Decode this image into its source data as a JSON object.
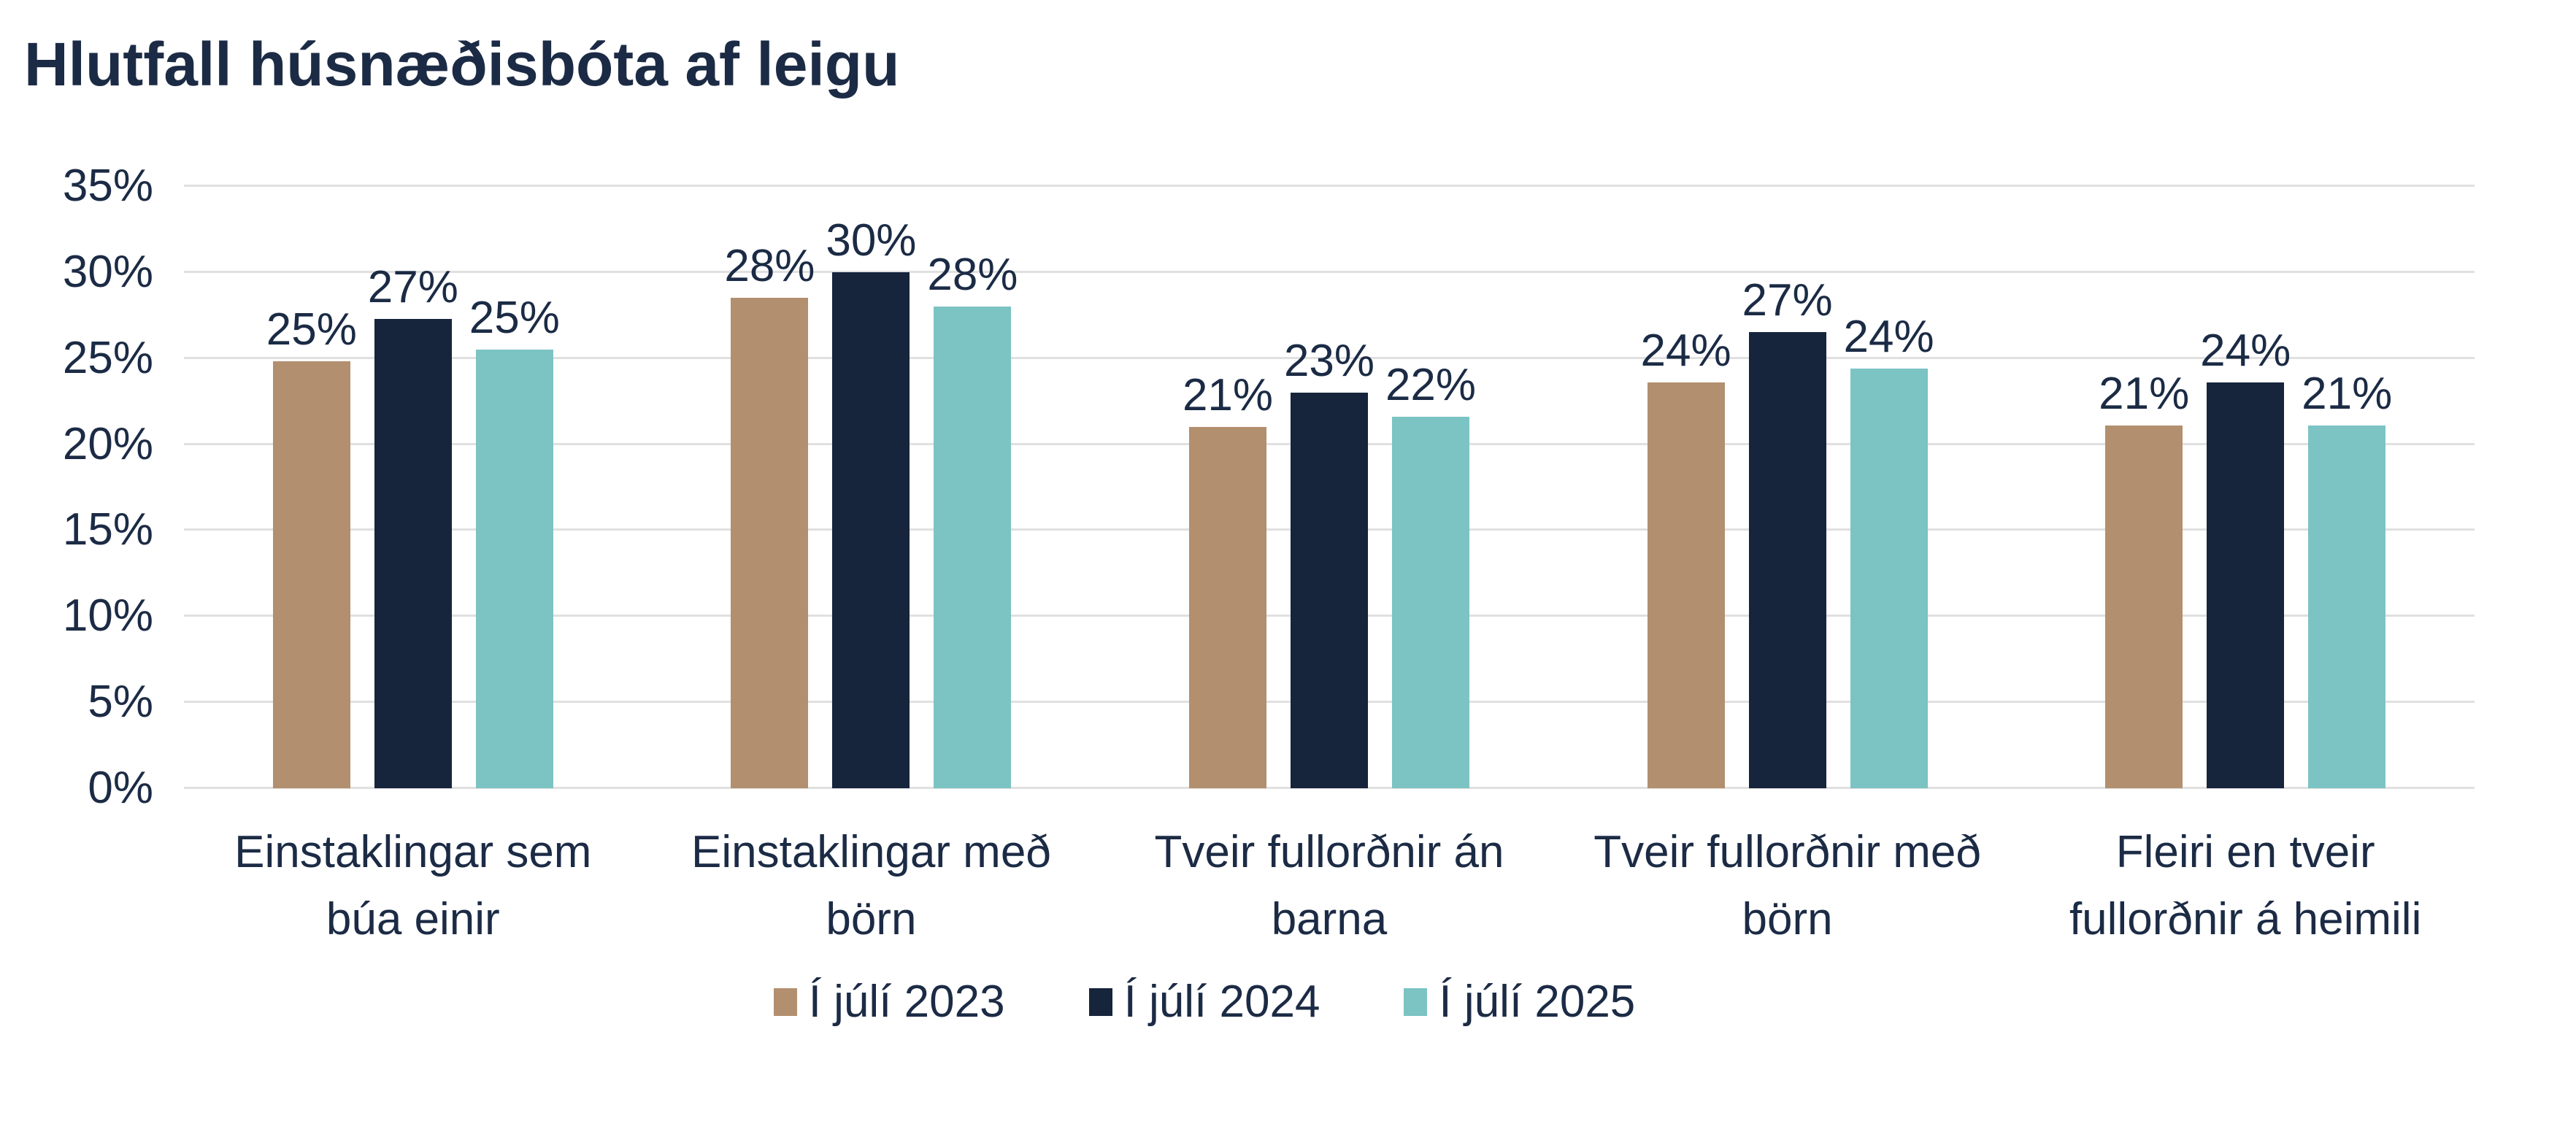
{
  "title": "Hlutfall húsnæðisbóta af leigu",
  "colors": {
    "text": "#1c2b45",
    "gridline": "#e0e0e0",
    "series_2023": "#b28f6e",
    "series_2024": "#16243c",
    "series_2025": "#7cc3c3"
  },
  "chart_data": {
    "type": "bar",
    "title": "Hlutfall húsnæðisbóta af leigu",
    "categories": [
      "Einstaklingar sem búa einir",
      "Einstaklingar með börn",
      "Tveir fullorðnir án barna",
      "Tveir fullorðnir með börn",
      "Fleiri en tveir fullorðnir á heimili"
    ],
    "categories_wrapped": [
      [
        "Einstaklingar sem",
        "búa einir"
      ],
      [
        "Einstaklingar með",
        "börn"
      ],
      [
        "Tveir fullorðnir án",
        "barna"
      ],
      [
        "Tveir fullorðnir með",
        "börn"
      ],
      [
        "Fleiri en tveir",
        "fullorðnir á heimili"
      ]
    ],
    "series": [
      {
        "name": "Í júlí 2023",
        "color": "#b28f6e",
        "values": [
          24.8,
          28.5,
          21.0,
          23.6,
          21.1
        ],
        "labels": [
          "25%",
          "28%",
          "21%",
          "24%",
          "21%"
        ]
      },
      {
        "name": "Í júlí 2024",
        "color": "#16243c",
        "values": [
          27.3,
          30.0,
          23.0,
          26.5,
          23.6
        ],
        "labels": [
          "27%",
          "30%",
          "23%",
          "27%",
          "24%"
        ]
      },
      {
        "name": "Í júlí 2025",
        "color": "#7cc3c3",
        "values": [
          25.5,
          28.0,
          21.6,
          24.4,
          21.1
        ],
        "labels": [
          "25%",
          "28%",
          "22%",
          "24%",
          "21%"
        ]
      }
    ],
    "xlabel": "",
    "ylabel": "",
    "ylim": [
      0,
      35
    ],
    "ytick_step": 5,
    "yticks": [
      "0%",
      "5%",
      "10%",
      "15%",
      "20%",
      "25%",
      "30%",
      "35%"
    ],
    "grid": "horizontal",
    "legend_position": "bottom"
  }
}
